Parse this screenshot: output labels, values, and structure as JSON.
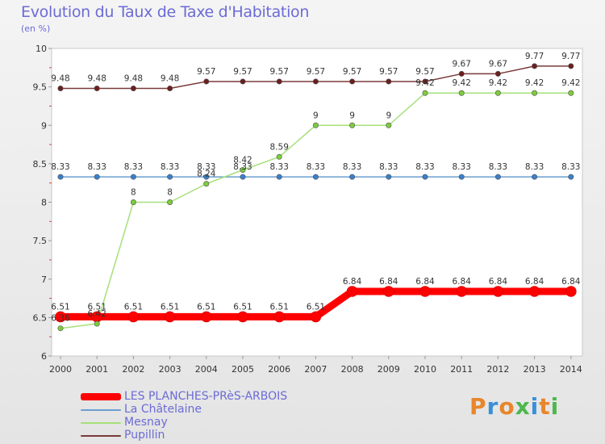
{
  "title": "Evolution du Taux de Taxe d'Habitation",
  "unit_label": "(en %)",
  "brand": {
    "text": "Proxiti",
    "letters": [
      "P",
      "r",
      "o",
      "x",
      "i",
      "t",
      "i"
    ],
    "colors": [
      "#e8862a",
      "#3a8fd8",
      "#e8862a",
      "#4cb84c",
      "#3a8fd8",
      "#e8862a",
      "#4cb84c"
    ]
  },
  "chart_data": {
    "type": "line",
    "title": "Evolution du Taux de Taxe d'Habitation",
    "ylabel": "(en %)",
    "xlabel": "",
    "ylim": [
      6,
      10
    ],
    "yticks": [
      6,
      6.5,
      7,
      7.5,
      8,
      8.5,
      9,
      9.5,
      10
    ],
    "ytick_labels": [
      "6",
      "6.5",
      "7",
      "7.5",
      "8",
      "8.5",
      "9",
      "9.5",
      "10"
    ],
    "categories": [
      "2000",
      "2001",
      "2002",
      "2003",
      "2004",
      "2005",
      "2006",
      "2007",
      "2008",
      "2009",
      "2010",
      "2011",
      "2012",
      "2013",
      "2014"
    ],
    "series": [
      {
        "name": "LES PLANCHES-PRèS-ARBOIS",
        "color": "#ff0000",
        "width": 9,
        "marker_color": "#ff0000",
        "values": [
          6.51,
          6.51,
          6.51,
          6.51,
          6.51,
          6.51,
          6.51,
          6.51,
          6.84,
          6.84,
          6.84,
          6.84,
          6.84,
          6.84,
          6.84
        ],
        "labels": [
          "6.51",
          "6.51",
          "6.51",
          "6.51",
          "6.51",
          "6.51",
          "6.51",
          "6.51",
          "6.84",
          "6.84",
          "6.84",
          "6.84",
          "6.84",
          "6.84",
          "6.84"
        ]
      },
      {
        "name": "La Châtelaine",
        "color": "#6b9fd0",
        "width": 1.5,
        "marker_color": "#3a7fc8",
        "values": [
          8.33,
          8.33,
          8.33,
          8.33,
          8.33,
          8.33,
          8.33,
          8.33,
          8.33,
          8.33,
          8.33,
          8.33,
          8.33,
          8.33,
          8.33
        ],
        "labels": [
          "8.33",
          "8.33",
          "8.33",
          "8.33",
          "8.33",
          "8.33",
          "8.33",
          "8.33",
          "8.33",
          "8.33",
          "8.33",
          "8.33",
          "8.33",
          "8.33",
          "8.33"
        ]
      },
      {
        "name": "Mesnay",
        "color": "#a6e07a",
        "width": 1.5,
        "marker_color": "#7ccc3c",
        "values": [
          6.36,
          6.42,
          8,
          8,
          8.24,
          8.42,
          8.59,
          9,
          9,
          9,
          9.42,
          9.42,
          9.42,
          9.42,
          9.42
        ],
        "labels": [
          "6.36",
          "6.42",
          "8",
          "8",
          "8.24",
          "8.42",
          "8.59",
          "9",
          "9",
          "9",
          "9.42",
          "9.42",
          "9.42",
          "9.42",
          "9.42"
        ]
      },
      {
        "name": "Pupillin",
        "color": "#7a3a3a",
        "width": 1.5,
        "marker_color": "#6a1f1f",
        "values": [
          9.48,
          9.48,
          9.48,
          9.48,
          9.57,
          9.57,
          9.57,
          9.57,
          9.57,
          9.57,
          9.57,
          9.67,
          9.67,
          9.77,
          9.77
        ],
        "labels": [
          "9.48",
          "9.48",
          "9.48",
          "9.48",
          "9.57",
          "9.57",
          "9.57",
          "9.57",
          "9.57",
          "9.57",
          "9.57",
          "9.67",
          "9.67",
          "9.77",
          "9.77"
        ]
      }
    ],
    "grid": false,
    "legend": "bottom-left"
  }
}
